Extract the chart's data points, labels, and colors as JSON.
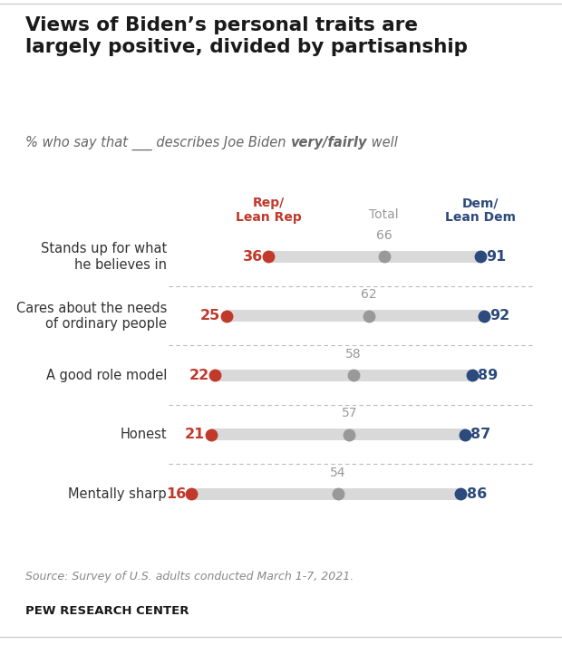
{
  "title": "Views of Biden’s personal traits are\nlargely positive, divided by partisanship",
  "subtitle_normal": "% who say that ___ describes Joe Biden ",
  "subtitle_bold": "very/fairly",
  "subtitle_end": " well",
  "categories": [
    "Stands up for what\nhe believes in",
    "Cares about the needs\nof ordinary people",
    "A good role model",
    "Honest",
    "Mentally sharp"
  ],
  "rep_values": [
    36,
    25,
    22,
    21,
    16
  ],
  "total_values": [
    66,
    62,
    58,
    57,
    54
  ],
  "dem_values": [
    91,
    92,
    89,
    87,
    86
  ],
  "rep_color": "#c0392b",
  "total_color": "#999999",
  "dem_color": "#2c4a7c",
  "bar_color": "#d9d9d9",
  "header_rep": "Rep/\nLean Rep",
  "header_total": "Total",
  "header_dem": "Dem/\nLean Dem",
  "source_text": "Source: Survey of U.S. adults conducted March 1-7, 2021.",
  "footer_text": "PEW RESEARCH CENTER",
  "background_color": "#ffffff",
  "cat_label_color": "#333333",
  "sep_line_color": "#bbbbbb",
  "title_color": "#1a1a1a",
  "subtitle_color": "#666666"
}
